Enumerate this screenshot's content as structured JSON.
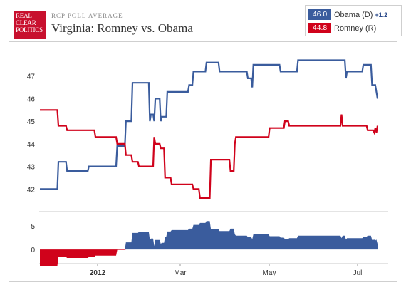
{
  "header": {
    "logo_lines": [
      "REAL",
      "CLEAR",
      "POLITICS"
    ],
    "subtitle": "RCP POLL AVERAGE",
    "title": "Virginia: Romney vs. Obama"
  },
  "legend": [
    {
      "value": "46.0",
      "name": "Obama (D)",
      "change": "+1.2",
      "color": "#3a5c9d"
    },
    {
      "value": "44.8",
      "name": "Romney (R)",
      "change": "",
      "color": "#d0021b"
    }
  ],
  "chart_data": {
    "type": "line",
    "title": "Virginia: Romney vs. Obama",
    "x_ticks": [
      "2012",
      "Mar",
      "May",
      "Jul"
    ],
    "y_ticks": [
      42,
      43,
      44,
      45,
      46,
      47
    ],
    "ylim": [
      41,
      48
    ],
    "spread_ticks": [
      5,
      0
    ],
    "spread_ylim": [
      -3,
      8
    ],
    "colors": {
      "obama": "#3a5c9d",
      "romney": "#d0021b"
    },
    "series": [
      {
        "name": "Obama (D)",
        "points": [
          [
            0,
            42.0
          ],
          [
            8,
            42.0
          ],
          [
            8.5,
            43.2
          ],
          [
            12,
            43.2
          ],
          [
            12.5,
            42.8
          ],
          [
            22,
            42.8
          ],
          [
            22.5,
            43.0
          ],
          [
            35,
            43.0
          ],
          [
            35.5,
            43.9
          ],
          [
            39,
            43.9
          ],
          [
            39.5,
            45.0
          ],
          [
            42,
            45.0
          ],
          [
            42.5,
            46.7
          ],
          [
            50,
            46.7
          ],
          [
            50.5,
            45.0
          ],
          [
            51,
            45.3
          ],
          [
            52,
            45.3
          ],
          [
            52.5,
            45.0
          ],
          [
            53,
            46.0
          ],
          [
            55,
            46.0
          ],
          [
            55.5,
            45.0
          ],
          [
            56,
            45.2
          ],
          [
            58,
            45.2
          ],
          [
            58.5,
            46.3
          ],
          [
            68,
            46.3
          ],
          [
            68.5,
            46.6
          ],
          [
            70,
            46.6
          ],
          [
            70.5,
            47.2
          ],
          [
            76,
            47.2
          ],
          [
            76.5,
            47.6
          ],
          [
            82,
            47.6
          ],
          [
            82.5,
            47.2
          ],
          [
            95,
            47.2
          ],
          [
            95.5,
            46.9
          ],
          [
            97,
            46.9
          ],
          [
            97.5,
            46.5
          ],
          [
            98,
            47.5
          ],
          [
            110,
            47.5
          ],
          [
            110.5,
            47.2
          ],
          [
            118,
            47.2
          ],
          [
            118.5,
            47.7
          ],
          [
            140,
            47.7
          ],
          [
            140.5,
            46.9
          ],
          [
            141,
            47.2
          ],
          [
            148,
            47.2
          ],
          [
            148.5,
            47.5
          ],
          [
            152,
            47.5
          ],
          [
            152.5,
            46.6
          ],
          [
            154,
            46.6
          ],
          [
            155,
            46.0
          ]
        ]
      },
      {
        "name": "Romney (R)",
        "points": [
          [
            0,
            45.5
          ],
          [
            8,
            45.5
          ],
          [
            8.5,
            44.8
          ],
          [
            12,
            44.8
          ],
          [
            12.5,
            44.6
          ],
          [
            25,
            44.6
          ],
          [
            25.5,
            44.3
          ],
          [
            35,
            44.3
          ],
          [
            35.5,
            44.0
          ],
          [
            39,
            44.0
          ],
          [
            39.5,
            43.5
          ],
          [
            42,
            43.5
          ],
          [
            42.5,
            43.2
          ],
          [
            45,
            43.2
          ],
          [
            45.5,
            43.0
          ],
          [
            52,
            43.0
          ],
          [
            52.5,
            44.3
          ],
          [
            53,
            44.0
          ],
          [
            55,
            44.0
          ],
          [
            55.5,
            43.8
          ],
          [
            57,
            43.8
          ],
          [
            57.5,
            42.5
          ],
          [
            60,
            42.5
          ],
          [
            60.5,
            42.2
          ],
          [
            70,
            42.2
          ],
          [
            70.5,
            42.0
          ],
          [
            73,
            42.0
          ],
          [
            73.5,
            41.6
          ],
          [
            78,
            41.6
          ],
          [
            78.5,
            43.3
          ],
          [
            87,
            43.3
          ],
          [
            87.5,
            42.8
          ],
          [
            89,
            42.8
          ],
          [
            89.5,
            44.0
          ],
          [
            90,
            44.3
          ],
          [
            105,
            44.3
          ],
          [
            105.5,
            44.7
          ],
          [
            112,
            44.7
          ],
          [
            112.5,
            45.0
          ],
          [
            114,
            45.0
          ],
          [
            114.5,
            44.8
          ],
          [
            138,
            44.8
          ],
          [
            138.5,
            45.3
          ],
          [
            139,
            44.8
          ],
          [
            150,
            44.8
          ],
          [
            150.5,
            44.6
          ],
          [
            153,
            44.6
          ],
          [
            153.5,
            44.5
          ],
          [
            154,
            44.7
          ],
          [
            154.5,
            44.5
          ],
          [
            155,
            44.8
          ]
        ]
      }
    ]
  }
}
